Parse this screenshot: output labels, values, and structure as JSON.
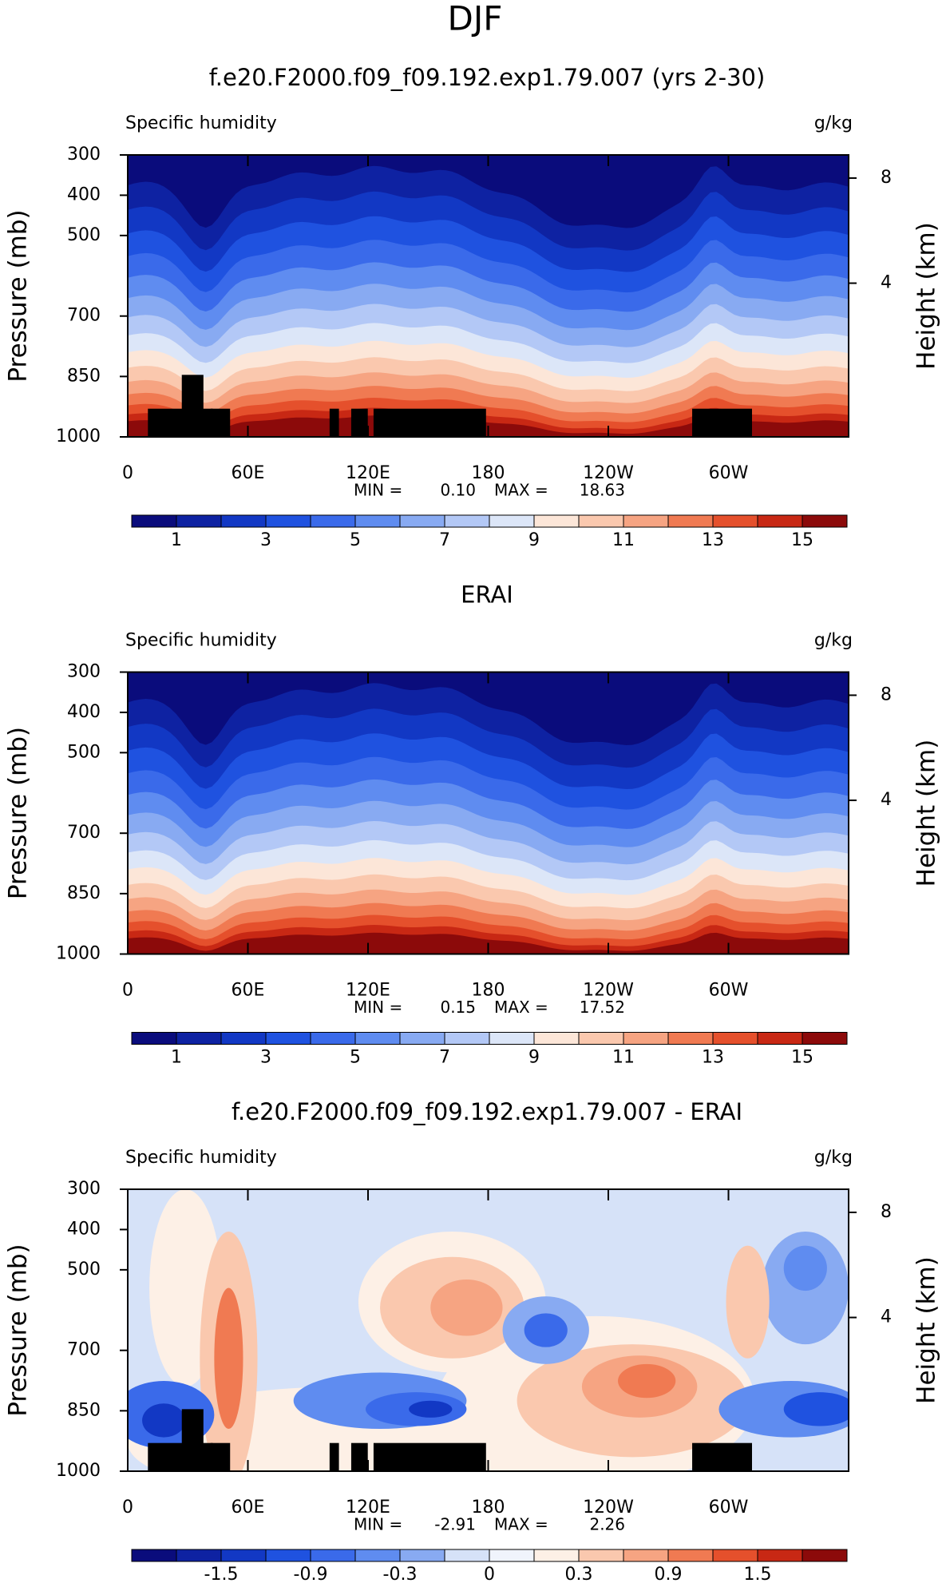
{
  "title": "DJF",
  "chart_data": [
    {
      "type": "contour",
      "title": "f.e20.F2000.f09_f09.192.exp1.79.007 (yrs 2-30)",
      "left_label": "Specific humidity",
      "right_label": "g/kg",
      "ylabel": "Pressure (mb)",
      "y2label": "Height (km)",
      "xlim": [
        0,
        360
      ],
      "xticks": [
        0,
        {
          "value": 60,
          "label": "60E"
        },
        {
          "value": 120,
          "label": "120E"
        },
        180,
        {
          "value": 240,
          "label": "120W"
        },
        {
          "value": 300,
          "label": "60W"
        }
      ],
      "ylim": [
        1000,
        300
      ],
      "yticks": [
        300,
        400,
        500,
        700,
        850,
        1000
      ],
      "y2lim": [
        -1.85,
        8.88
      ],
      "y2ticks": [
        4,
        8
      ],
      "min_label": "MIN =",
      "min": {
        "value": 0.1,
        "label": "0.10"
      },
      "max_label": "MAX =",
      "max": 18.63,
      "levels": [
        1,
        2,
        3,
        4,
        5,
        6,
        7,
        8,
        9,
        10,
        11,
        12,
        13,
        14,
        15
      ],
      "colorbar_ticks": [
        1,
        3,
        5,
        7,
        9,
        11,
        13,
        15
      ],
      "colors": [
        "#0a0c7c",
        "#0e22a2",
        "#1238c4",
        "#1f52e0",
        "#3a6aea",
        "#5f8cf0",
        "#88aaf2",
        "#b3c8f6",
        "#dce6f8",
        "#fce6d8",
        "#fac8ae",
        "#f6a482",
        "#f07a52",
        "#e5502c",
        "#c82814",
        "#8c0a0a"
      ],
      "land_mask": true
    },
    {
      "type": "contour",
      "title": "ERAI",
      "left_label": "Specific humidity",
      "right_label": "g/kg",
      "ylabel": "Pressure (mb)",
      "y2label": "Height (km)",
      "xlim": [
        0,
        360
      ],
      "xticks": [
        0,
        {
          "value": 60,
          "label": "60E"
        },
        {
          "value": 120,
          "label": "120E"
        },
        180,
        {
          "value": 240,
          "label": "120W"
        },
        {
          "value": 300,
          "label": "60W"
        }
      ],
      "ylim": [
        1000,
        300
      ],
      "yticks": [
        300,
        400,
        500,
        700,
        850,
        1000
      ],
      "y2lim": [
        -1.85,
        8.88
      ],
      "y2ticks": [
        4,
        8
      ],
      "min_label": "MIN =",
      "min": {
        "value": 0.15,
        "label": "0.15"
      },
      "max_label": "MAX =",
      "max": 17.52,
      "levels": [
        1,
        2,
        3,
        4,
        5,
        6,
        7,
        8,
        9,
        10,
        11,
        12,
        13,
        14,
        15
      ],
      "colorbar_ticks": [
        1,
        3,
        5,
        7,
        9,
        11,
        13,
        15
      ],
      "colors": [
        "#0a0c7c",
        "#0e22a2",
        "#1238c4",
        "#1f52e0",
        "#3a6aea",
        "#5f8cf0",
        "#88aaf2",
        "#b3c8f6",
        "#dce6f8",
        "#fce6d8",
        "#fac8ae",
        "#f6a482",
        "#f07a52",
        "#e5502c",
        "#c82814",
        "#8c0a0a"
      ],
      "land_mask": false
    },
    {
      "type": "contour",
      "title": "f.e20.F2000.f09_f09.192.exp1.79.007 - ERAI",
      "left_label": "Specific humidity",
      "right_label": "g/kg",
      "ylabel": "Pressure (mb)",
      "y2label": "Height (km)",
      "xlim": [
        0,
        360
      ],
      "xticks": [
        0,
        {
          "value": 60,
          "label": "60E"
        },
        {
          "value": 120,
          "label": "120E"
        },
        180,
        {
          "value": 240,
          "label": "120W"
        },
        {
          "value": 300,
          "label": "60W"
        }
      ],
      "ylim": [
        1000,
        300
      ],
      "yticks": [
        300,
        400,
        500,
        700,
        850,
        1000
      ],
      "y2lim": [
        -1.85,
        8.88
      ],
      "y2ticks": [
        4,
        8
      ],
      "min_label": "MIN =",
      "min": -2.91,
      "max_label": "MAX =",
      "max": 2.26,
      "levels": [
        -1.8,
        -1.5,
        -1.2,
        -0.9,
        -0.6,
        -0.3,
        -0.15,
        0,
        0.15,
        0.3,
        0.6,
        0.9,
        1.2,
        1.5,
        1.8
      ],
      "colorbar_ticks": [
        -1.5,
        -0.9,
        -0.3,
        0,
        0.3,
        0.9,
        1.5
      ],
      "colors": [
        "#0a0c7c",
        "#0e22a2",
        "#1238c4",
        "#1f52e0",
        "#3a6aea",
        "#5f8cf0",
        "#88aaf2",
        "#d6e2f8",
        "#f0f4fc",
        "#fdf0e6",
        "#fac8ae",
        "#f6a482",
        "#f07a52",
        "#e5502c",
        "#c82814",
        "#8c0a0a"
      ],
      "land_mask": true
    }
  ]
}
